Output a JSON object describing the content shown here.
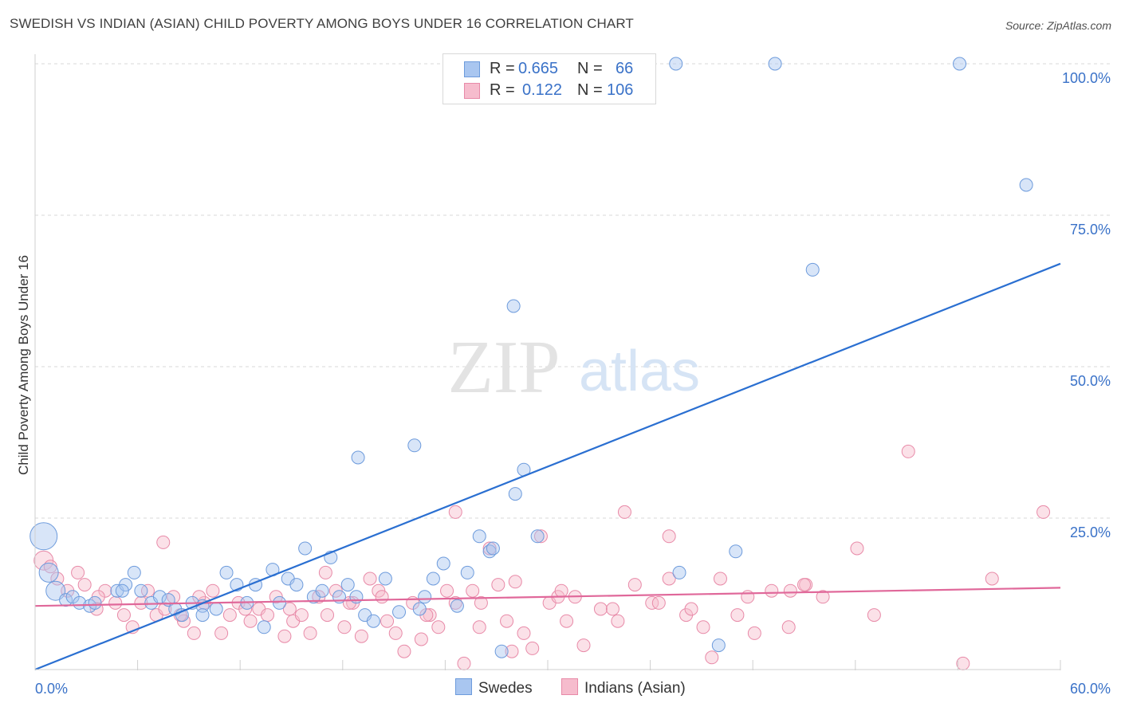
{
  "title": "SWEDISH VS INDIAN (ASIAN) CHILD POVERTY AMONG BOYS UNDER 16 CORRELATION CHART",
  "source": "Source: ZipAtlas.com",
  "watermark": {
    "zip": "ZIP",
    "atlas": "atlas"
  },
  "legend": {
    "r_label": "R =",
    "n_label": "N =",
    "rows": [
      {
        "r": "0.665",
        "n": "66"
      },
      {
        "r": "0.122",
        "n": "106"
      }
    ]
  },
  "colors": {
    "swedes_fill": "#a9c6f0",
    "swedes_stroke": "#6d9bdc",
    "swedes_line": "#2a6fd1",
    "indians_fill": "#f6bccd",
    "indians_stroke": "#e88aa8",
    "indians_line": "#e0689a",
    "axis_text": "#3a72c8",
    "grid": "#d9d9d9"
  },
  "chart_data": {
    "type": "scatter",
    "title": "SWEDISH VS INDIAN (ASIAN) CHILD POVERTY AMONG BOYS UNDER 16 CORRELATION CHART",
    "xlabel": "",
    "ylabel": "Child Poverty Among Boys Under 16",
    "xlim": [
      0,
      60
    ],
    "ylim": [
      0,
      100
    ],
    "x_tick_labels": [
      "0.0%",
      "60.0%"
    ],
    "y_tick_values": [
      25,
      50,
      75,
      100
    ],
    "y_tick_labels": [
      "25.0%",
      "50.0%",
      "75.0%",
      "100.0%"
    ],
    "grid": true,
    "legend_position": "top-center",
    "series": [
      {
        "name": "Swedes",
        "r": 0.665,
        "n": 66,
        "trend": {
          "x": [
            0,
            60
          ],
          "y": [
            0,
            67
          ]
        },
        "points": [
          [
            0.5,
            22,
            3
          ],
          [
            0.8,
            16,
            2
          ],
          [
            1.2,
            13,
            2
          ],
          [
            1.8,
            11.5,
            1
          ],
          [
            2.2,
            12,
            1
          ],
          [
            2.6,
            11,
            1
          ],
          [
            3.2,
            10.5,
            1
          ],
          [
            3.5,
            11,
            1
          ],
          [
            4.8,
            13,
            1
          ],
          [
            5.3,
            14,
            1
          ],
          [
            5.8,
            16,
            1
          ],
          [
            6.2,
            13,
            1
          ],
          [
            6.8,
            11,
            1
          ],
          [
            7.3,
            12,
            1
          ],
          [
            7.8,
            11.5,
            1
          ],
          [
            8.2,
            10,
            1
          ],
          [
            8.6,
            9,
            1
          ],
          [
            9.2,
            11,
            1
          ],
          [
            9.8,
            10.5,
            1
          ],
          [
            10.6,
            10,
            1
          ],
          [
            11.2,
            16,
            1
          ],
          [
            11.8,
            14,
            1
          ],
          [
            12.4,
            11,
            1
          ],
          [
            12.9,
            14,
            1
          ],
          [
            13.4,
            7,
            1
          ],
          [
            13.9,
            16.5,
            1
          ],
          [
            14.3,
            11,
            1
          ],
          [
            14.8,
            15,
            1
          ],
          [
            15.3,
            14,
            1
          ],
          [
            15.8,
            20,
            1
          ],
          [
            16.3,
            12,
            1
          ],
          [
            16.8,
            13,
            1
          ],
          [
            17.3,
            18.5,
            1
          ],
          [
            17.8,
            12,
            1
          ],
          [
            18.3,
            14,
            1
          ],
          [
            18.8,
            12,
            1
          ],
          [
            19.3,
            9,
            1
          ],
          [
            19.8,
            8,
            1
          ],
          [
            18.9,
            35,
            1
          ],
          [
            20.5,
            15,
            1
          ],
          [
            21.3,
            9.5,
            1
          ],
          [
            22.2,
            37,
            1
          ],
          [
            22.8,
            12,
            1
          ],
          [
            23.3,
            15,
            1
          ],
          [
            23.9,
            17.5,
            1
          ],
          [
            24.7,
            10.5,
            1
          ],
          [
            25.3,
            16,
            1
          ],
          [
            26.0,
            22,
            1
          ],
          [
            26.6,
            19.5,
            1
          ],
          [
            27.3,
            3,
            1
          ],
          [
            28.1,
            29,
            1
          ],
          [
            28.6,
            33,
            1
          ],
          [
            29.4,
            22,
            1
          ],
          [
            28.0,
            60,
            1
          ],
          [
            37.5,
            100,
            1
          ],
          [
            43.3,
            100,
            1
          ],
          [
            54.1,
            100,
            1
          ],
          [
            58.0,
            80,
            1
          ],
          [
            45.5,
            66,
            1
          ],
          [
            37.7,
            16,
            1
          ],
          [
            40.0,
            4,
            1
          ],
          [
            41.0,
            19.5,
            1
          ],
          [
            22.5,
            10,
            1
          ],
          [
            9.8,
            9,
            1
          ],
          [
            5.1,
            13,
            1
          ],
          [
            26.8,
            20,
            1
          ]
        ]
      },
      {
        "name": "Indians (Asian)",
        "r": 0.122,
        "n": 106,
        "trend": {
          "x": [
            0,
            60
          ],
          "y": [
            10.5,
            13.5
          ]
        },
        "points": [
          [
            0.5,
            18,
            2
          ],
          [
            0.9,
            17,
            1
          ],
          [
            1.3,
            15,
            1
          ],
          [
            1.9,
            13,
            1
          ],
          [
            2.5,
            16,
            1
          ],
          [
            2.9,
            14,
            1
          ],
          [
            3.6,
            10,
            1
          ],
          [
            4.1,
            13,
            1
          ],
          [
            4.7,
            11,
            1
          ],
          [
            5.2,
            9,
            1
          ],
          [
            5.7,
            7,
            1
          ],
          [
            6.2,
            11,
            1
          ],
          [
            6.6,
            13,
            1
          ],
          [
            7.1,
            9,
            1
          ],
          [
            7.6,
            10,
            1
          ],
          [
            8.1,
            12,
            1
          ],
          [
            8.7,
            8,
            1
          ],
          [
            9.3,
            6,
            1
          ],
          [
            9.9,
            11,
            1
          ],
          [
            10.4,
            13,
            1
          ],
          [
            10.9,
            6,
            1
          ],
          [
            11.4,
            9,
            1
          ],
          [
            11.9,
            11,
            1
          ],
          [
            12.6,
            8,
            1
          ],
          [
            13.1,
            10,
            1
          ],
          [
            13.6,
            9,
            1
          ],
          [
            14.1,
            12,
            1
          ],
          [
            14.6,
            5.5,
            1
          ],
          [
            15.1,
            8,
            1
          ],
          [
            15.6,
            9,
            1
          ],
          [
            16.1,
            6,
            1
          ],
          [
            16.6,
            12,
            1
          ],
          [
            17.1,
            9,
            1
          ],
          [
            17.6,
            13,
            1
          ],
          [
            18.1,
            7,
            1
          ],
          [
            18.6,
            11,
            1
          ],
          [
            19.1,
            5.5,
            1
          ],
          [
            19.6,
            15,
            1
          ],
          [
            20.1,
            13,
            1
          ],
          [
            20.6,
            8,
            1
          ],
          [
            21.1,
            6,
            1
          ],
          [
            21.6,
            3,
            1
          ],
          [
            22.1,
            11,
            1
          ],
          [
            22.6,
            5,
            1
          ],
          [
            23.1,
            9,
            1
          ],
          [
            23.6,
            7,
            1
          ],
          [
            24.1,
            13,
            1
          ],
          [
            24.6,
            11,
            1
          ],
          [
            25.1,
            1,
            1
          ],
          [
            25.6,
            13,
            1
          ],
          [
            26.1,
            11,
            1
          ],
          [
            26.6,
            20,
            1
          ],
          [
            27.1,
            14,
            1
          ],
          [
            27.6,
            8,
            1
          ],
          [
            28.1,
            14.5,
            1
          ],
          [
            28.6,
            6,
            1
          ],
          [
            29.1,
            3.5,
            1
          ],
          [
            29.6,
            22,
            1
          ],
          [
            30.1,
            11,
            1
          ],
          [
            30.6,
            12,
            1
          ],
          [
            31.1,
            8,
            1
          ],
          [
            31.6,
            12,
            1
          ],
          [
            32.1,
            4,
            1
          ],
          [
            33.1,
            10,
            1
          ],
          [
            34.1,
            8,
            1
          ],
          [
            35.1,
            14,
            1
          ],
          [
            36.1,
            11,
            1
          ],
          [
            37.1,
            15,
            1
          ],
          [
            38.1,
            9,
            1
          ],
          [
            39.1,
            7,
            1
          ],
          [
            39.6,
            2,
            1
          ],
          [
            40.1,
            15,
            1
          ],
          [
            41.1,
            9,
            1
          ],
          [
            42.1,
            6,
            1
          ],
          [
            43.1,
            13,
            1
          ],
          [
            44.1,
            7,
            1
          ],
          [
            45.1,
            14,
            1
          ],
          [
            46.1,
            12,
            1
          ],
          [
            48.1,
            20,
            1
          ],
          [
            49.1,
            9,
            1
          ],
          [
            51.1,
            36,
            1
          ],
          [
            56.0,
            15,
            1
          ],
          [
            59.0,
            26,
            1
          ],
          [
            54.3,
            1,
            1
          ],
          [
            37.1,
            22,
            1
          ],
          [
            34.5,
            26,
            1
          ],
          [
            24.6,
            26,
            1
          ],
          [
            7.5,
            21,
            1
          ],
          [
            3.7,
            12,
            1
          ],
          [
            9.6,
            12,
            1
          ],
          [
            12.3,
            10,
            1
          ],
          [
            17.0,
            16,
            1
          ],
          [
            18.4,
            11,
            1
          ],
          [
            22.9,
            9,
            1
          ],
          [
            26.0,
            7,
            1
          ],
          [
            30.8,
            13,
            1
          ],
          [
            33.8,
            10,
            1
          ],
          [
            36.5,
            11,
            1
          ],
          [
            38.4,
            10,
            1
          ],
          [
            41.7,
            12,
            1
          ],
          [
            44.2,
            13,
            1
          ],
          [
            45.0,
            14,
            1
          ],
          [
            27.9,
            3,
            1
          ],
          [
            8.5,
            9,
            1
          ],
          [
            14.9,
            10,
            1
          ],
          [
            20.3,
            12,
            1
          ]
        ]
      }
    ]
  }
}
